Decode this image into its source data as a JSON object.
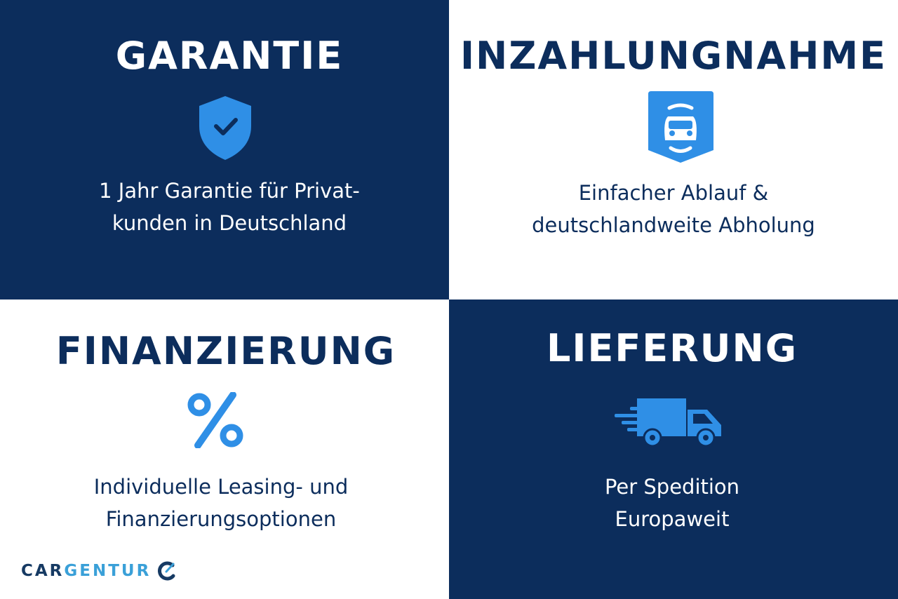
{
  "tiles": [
    {
      "title": "GARANTIE",
      "lines": [
        "1 Jahr Garantie für Privat-",
        "kunden in Deutschland"
      ],
      "icon": "shield-check-icon"
    },
    {
      "title": "INZAHLUNGNAHME",
      "lines": [
        "Einfacher Ablauf &",
        "deutschlandweite Abholung"
      ],
      "icon": "car-badge-icon"
    },
    {
      "title": "FINANZIERUNG",
      "lines": [
        "Individuelle Leasing- und",
        "Finanzierungsoptionen"
      ],
      "icon": "percent-icon"
    },
    {
      "title": "LIEFERUNG",
      "lines": [
        "Per Spedition",
        "Europaweit"
      ],
      "icon": "delivery-truck-icon"
    }
  ],
  "logo": {
    "part1": "CAR",
    "part2": "GENTUR"
  },
  "colors": {
    "navy": "#0c2d5c",
    "accent": "#2f8fe6",
    "logo_light": "#3aa0d8"
  }
}
